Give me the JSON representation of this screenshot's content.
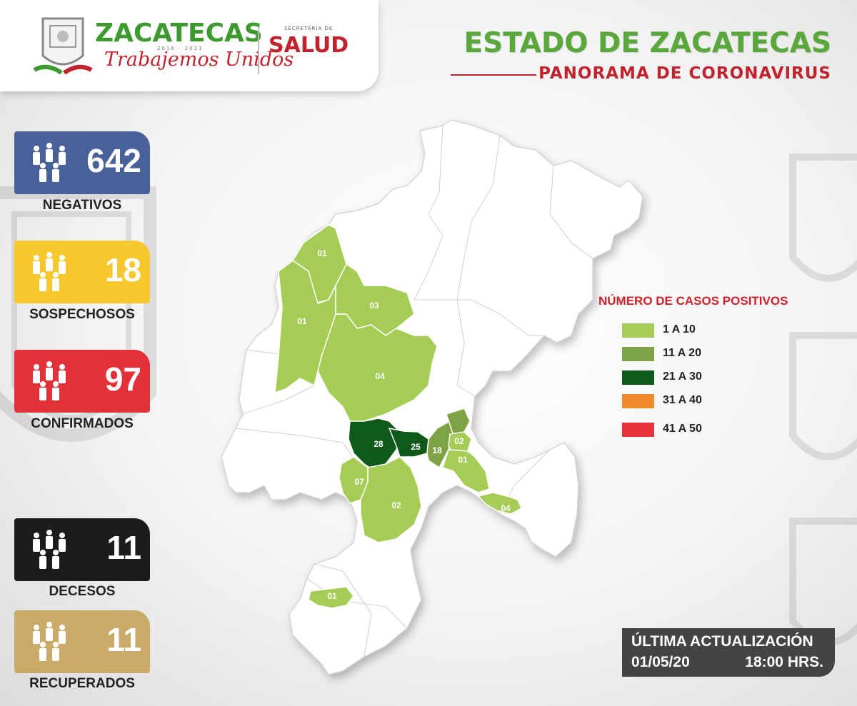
{
  "header": {
    "brand": "ZACATECAS",
    "brand_years": "2016 - 2021",
    "brand_slogan": "Trabajemos Unidos",
    "secretaria_label": "SECRETARÍA DE",
    "salud_label": "SALUD",
    "state_title": "ESTADO DE ZACATECAS",
    "state_subtitle": "PANORAMA DE CORONAVIRUS"
  },
  "stats": [
    {
      "value": "642",
      "label": "NEGATIVOS",
      "color": "#48619a"
    },
    {
      "value": "18",
      "label": "SOSPECHOSOS",
      "color": "#f7c72e"
    },
    {
      "value": "97",
      "label": "CONFIRMADOS",
      "color": "#e23138"
    },
    {
      "value": "11",
      "label": "DECESOS",
      "color": "#1c1c1c"
    },
    {
      "value": "11",
      "label": "RECUPERADOS",
      "color": "#c9aa68"
    }
  ],
  "legend": {
    "title": "NÚMERO DE CASOS POSITIVOS",
    "items": [
      {
        "label": "1 A 10",
        "color": "#a5cc55"
      },
      {
        "label": "11 A 20",
        "color": "#7ea345"
      },
      {
        "label": "21 A 30",
        "color": "#0f5a1b"
      },
      {
        "label": "31 A 40",
        "color": "#f18a2c"
      },
      {
        "label": "41 A 50",
        "color": "#e7323d"
      }
    ]
  },
  "municipality_labels": [
    "01",
    "01",
    "03",
    "04",
    "28",
    "25",
    "18",
    "02",
    "01",
    "07",
    "02",
    "04",
    "01"
  ],
  "update": {
    "title": "ÚLTIMA ACTUALIZACIÓN",
    "date": "01/05/20",
    "time": "18:00 HRS."
  }
}
